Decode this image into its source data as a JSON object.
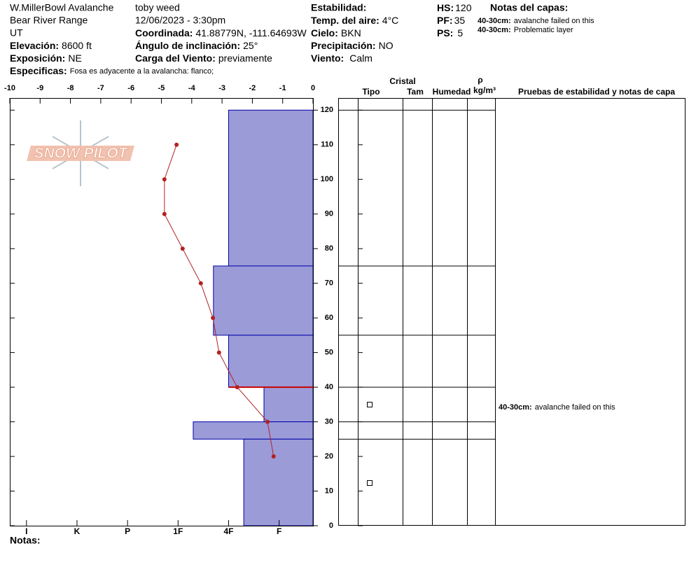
{
  "header": {
    "site": "W.MillerBowl Avalanche",
    "range": "Bear River Range",
    "state": "UT",
    "elevation": {
      "label": "Elevación:",
      "value": "8600 ft"
    },
    "aspect": {
      "label": "Exposición:",
      "value": "NE"
    },
    "specifics": {
      "label": "Especificas:",
      "value": "Fosa es adyacente a la avalancha: flanco;"
    },
    "observer": "toby weed",
    "datetime": "12/06/2023 - 3:30pm",
    "coordinates": {
      "label": "Coordinada:",
      "value": "41.88779N, -111.64693W"
    },
    "slope_angle": {
      "label": "Ángulo de inclinación:",
      "value": "25°"
    },
    "wind_loading": {
      "label": "Carga del Viento:",
      "value": "previamente"
    },
    "stability_label": "Estabilidad:",
    "air_temp": {
      "label": "Temp. del aire:",
      "value": "4°C"
    },
    "sky": {
      "label": "Cielo:",
      "value": "BKN"
    },
    "precipitation": {
      "label": "Precipitación:",
      "value": "NO"
    },
    "wind": {
      "label": "Viento:",
      "value": "Calm"
    },
    "hs": {
      "label": "HS:",
      "value": "120"
    },
    "pf": {
      "label": "PF:",
      "value": "35"
    },
    "ps": {
      "label": "PS:",
      "value": "5"
    },
    "notes_title": "Notas del capas:",
    "layer_notes": [
      {
        "range": "40-30cm:",
        "text": "avalanche failed on this"
      },
      {
        "range": "40-30cm:",
        "text": "Problematic layer"
      }
    ],
    "notes_label": "Notas:"
  },
  "logo": "SNOW PILOT",
  "table_headers": {
    "crystal": "Cristal",
    "type": "Tipo",
    "size": "Tam",
    "moisture": "Humedad",
    "density": "ρ",
    "density_unit": "kg/m³",
    "tests": "Pruebas de estabilidad y notas de capa"
  },
  "chart_data": {
    "type": "snow-profile",
    "xlim": [
      -10,
      0
    ],
    "xticks": [
      -10,
      -9,
      -8,
      -7,
      -6,
      -5,
      -4,
      -3,
      -2,
      -1,
      0
    ],
    "ylim": [
      0,
      123.5
    ],
    "yticks": [
      0,
      10,
      20,
      30,
      40,
      50,
      60,
      70,
      80,
      90,
      100,
      110,
      120
    ],
    "hardness_lim": [
      0.33,
      6.33
    ],
    "hardness_ticks": [
      {
        "value": 6,
        "label": "I"
      },
      {
        "value": 5,
        "label": "K"
      },
      {
        "value": 4,
        "label": "P"
      },
      {
        "value": 3,
        "label": "1F"
      },
      {
        "value": 2,
        "label": "4F"
      },
      {
        "value": 1,
        "label": "F"
      }
    ],
    "temperature_profile": {
      "color": "#b22222",
      "depth": [
        110,
        100,
        90,
        80,
        70,
        60,
        50,
        40,
        30,
        20
      ],
      "values": [
        -4.5,
        -4.9,
        -4.9,
        -4.3,
        -3.7,
        -3.3,
        -3.1,
        -2.5,
        -1.5,
        -1.3
      ]
    },
    "layers": {
      "color": "#9b9bd7",
      "edge": "#0000aa",
      "top": [
        120,
        75,
        55,
        40,
        30,
        25
      ],
      "bottom": [
        75,
        55,
        40,
        30,
        25,
        0
      ],
      "hardness": [
        2,
        2.3,
        2,
        1.3,
        2.7,
        1.7
      ]
    },
    "critical_layer": {
      "depth": 40,
      "color": "#cc0000"
    },
    "stability_notes": [
      {
        "range": "40-30cm:",
        "text": "avalanche failed on this"
      }
    ]
  }
}
